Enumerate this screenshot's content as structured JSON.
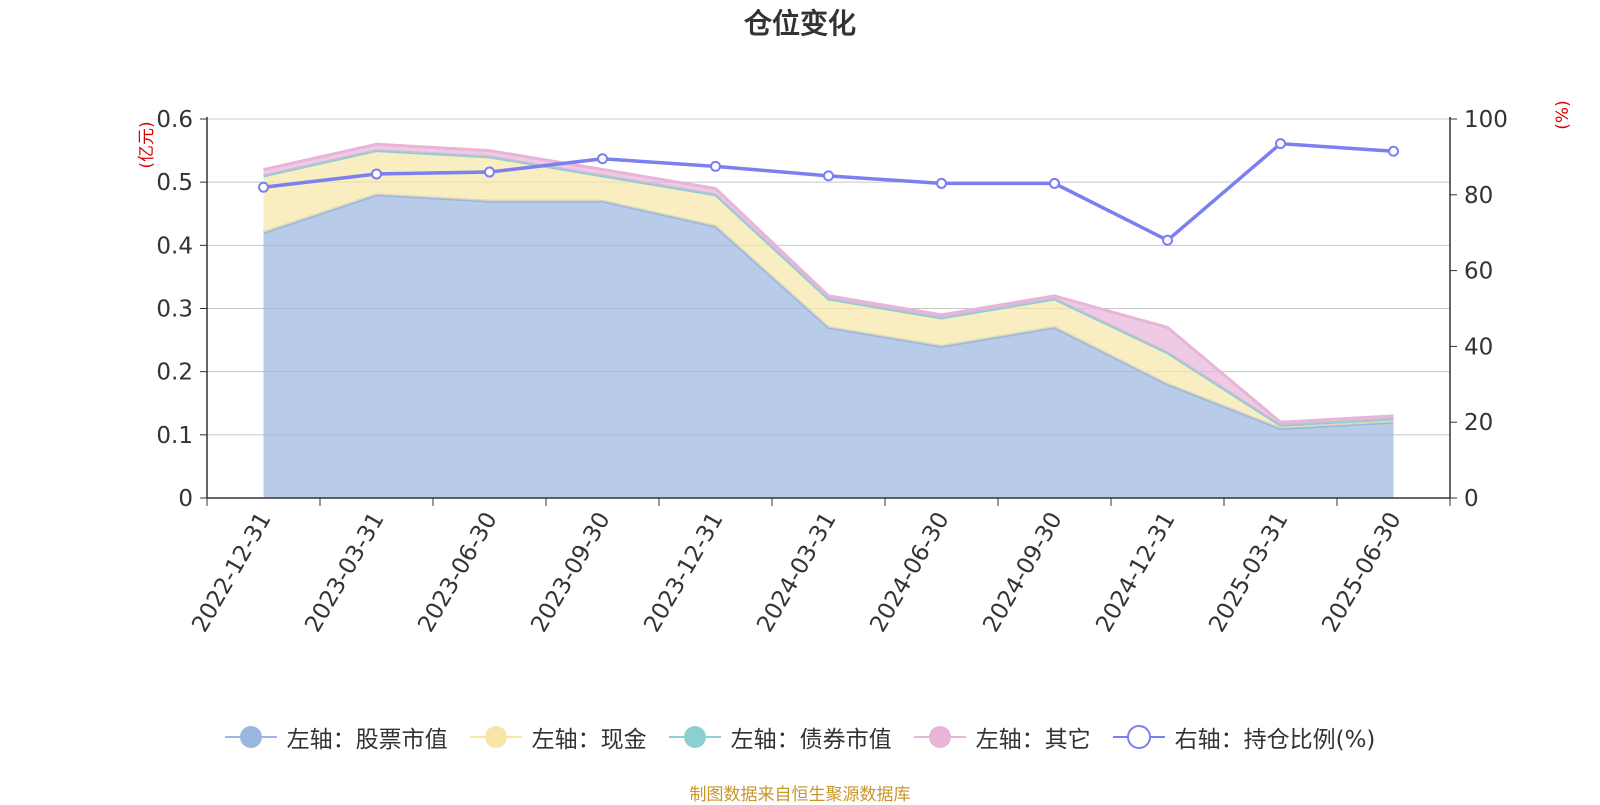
{
  "chart_data": {
    "type": "area",
    "title": "仓位变化",
    "y_left_label": "(亿元)",
    "y_right_label": "(%)",
    "x": [
      "2022-12-31",
      "2023-03-31",
      "2023-06-30",
      "2023-09-30",
      "2023-12-31",
      "2024-03-31",
      "2024-06-30",
      "2024-09-30",
      "2024-12-31",
      "2025-03-31",
      "2025-06-30"
    ],
    "y_left_ticks": [
      "0",
      "0.1",
      "0.2",
      "0.3",
      "0.4",
      "0.5",
      "0.6"
    ],
    "y_left_range": [
      0,
      0.6
    ],
    "y_right_ticks": [
      "0",
      "20",
      "40",
      "60",
      "80",
      "100"
    ],
    "y_right_range": [
      0,
      100
    ],
    "grid": true,
    "legend_position": "bottom",
    "series": [
      {
        "name": "左轴：股票市值",
        "axis": "left",
        "stacked": true,
        "color": "#9ab6e0",
        "values": [
          0.42,
          0.48,
          0.47,
          0.47,
          0.43,
          0.27,
          0.24,
          0.27,
          0.18,
          0.11,
          0.12
        ]
      },
      {
        "name": "左轴：现金",
        "axis": "left",
        "stacked": true,
        "color": "#f7e6a8",
        "values": [
          0.09,
          0.07,
          0.07,
          0.04,
          0.05,
          0.045,
          0.045,
          0.045,
          0.05,
          0.005,
          0.005
        ]
      },
      {
        "name": "左轴：债券市值",
        "axis": "left",
        "stacked": true,
        "color": "#8ccfd2",
        "values": [
          0,
          0,
          0,
          0,
          0,
          0,
          0,
          0,
          0,
          0,
          0
        ]
      },
      {
        "name": "左轴：其它",
        "axis": "left",
        "stacked": true,
        "color": "#e8b4d8",
        "values": [
          0.01,
          0.01,
          0.01,
          0.01,
          0.01,
          0.005,
          0.005,
          0.005,
          0.04,
          0.005,
          0.005
        ]
      },
      {
        "name": "右轴：持仓比例(%)",
        "axis": "right",
        "type": "line",
        "color": "#7b7fef",
        "values": [
          82,
          85.5,
          86,
          89.5,
          87.5,
          85,
          83,
          83,
          68,
          93.5,
          91.5
        ]
      }
    ]
  },
  "legend": {
    "items": [
      {
        "label": "左轴：股票市值",
        "color": "#9ab6e0",
        "kind": "area"
      },
      {
        "label": "左轴：现金",
        "color": "#f7e6a8",
        "kind": "area"
      },
      {
        "label": "左轴：债券市值",
        "color": "#8ccfd2",
        "kind": "area"
      },
      {
        "label": "左轴：其它",
        "color": "#e8b4d8",
        "kind": "area"
      },
      {
        "label": "右轴：持仓比例(%)",
        "color": "#7b7fef",
        "kind": "line"
      }
    ]
  },
  "source_note": "制图数据来自恒生聚源数据库"
}
